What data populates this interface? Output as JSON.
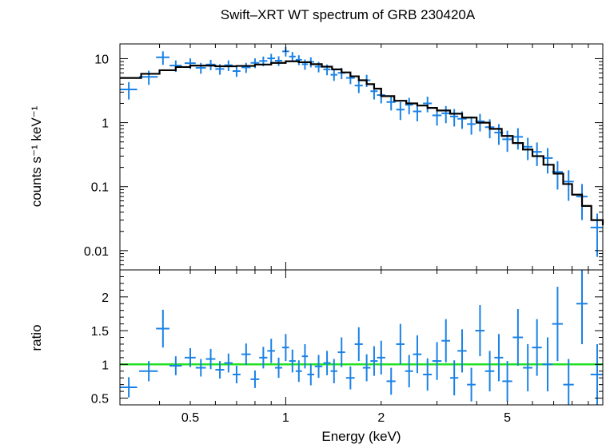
{
  "chart_data": [
    {
      "panel": "top",
      "type": "scatter",
      "title": "Swift–XRT WT spectrum of GRB 230420A",
      "xlabel": "",
      "ylabel": "counts s⁻¹ keV⁻¹",
      "xscale": "log",
      "yscale": "log",
      "xlim": [
        0.3,
        10
      ],
      "ylim": [
        0.005,
        17
      ],
      "yticks": [
        0.01,
        0.1,
        1,
        10
      ],
      "yticklabels": [
        "0.01",
        "0.1",
        "1",
        "10"
      ],
      "data_color": "#1a82e6",
      "model_color": "#000000",
      "series": [
        {
          "kind": "data",
          "x": [
            0.32,
            0.37,
            0.41,
            0.45,
            0.5,
            0.54,
            0.58,
            0.62,
            0.66,
            0.7,
            0.75,
            0.8,
            0.85,
            0.9,
            0.95,
            1.0,
            1.05,
            1.1,
            1.15,
            1.2,
            1.27,
            1.35,
            1.42,
            1.5,
            1.6,
            1.7,
            1.8,
            1.9,
            2.0,
            2.15,
            2.3,
            2.45,
            2.6,
            2.8,
            3.0,
            3.2,
            3.4,
            3.6,
            3.85,
            4.1,
            4.4,
            4.7,
            5.0,
            5.4,
            5.8,
            6.2,
            6.7,
            7.2,
            7.8,
            8.6,
            9.6
          ],
          "y": [
            3.3,
            5.2,
            10.5,
            7.8,
            8.5,
            7.2,
            8.1,
            6.9,
            7.9,
            6.4,
            7.3,
            8.6,
            9.2,
            10.1,
            9.3,
            13.0,
            10.8,
            9.6,
            8.2,
            8.9,
            7.5,
            6.8,
            5.6,
            6.0,
            5.0,
            3.8,
            4.6,
            3.1,
            2.7,
            2.1,
            1.6,
            1.9,
            1.5,
            2.0,
            1.3,
            1.4,
            1.25,
            1.15,
            0.95,
            1.05,
            0.85,
            0.7,
            0.55,
            0.6,
            0.42,
            0.35,
            0.28,
            0.17,
            0.12,
            0.07,
            0.023
          ],
          "xerr": [
            0.02,
            0.025,
            0.02,
            0.02,
            0.02,
            0.02,
            0.02,
            0.02,
            0.02,
            0.02,
            0.025,
            0.025,
            0.025,
            0.025,
            0.025,
            0.025,
            0.025,
            0.025,
            0.025,
            0.03,
            0.035,
            0.035,
            0.035,
            0.04,
            0.05,
            0.05,
            0.05,
            0.05,
            0.06,
            0.07,
            0.07,
            0.07,
            0.08,
            0.09,
            0.1,
            0.1,
            0.1,
            0.12,
            0.12,
            0.14,
            0.15,
            0.15,
            0.18,
            0.2,
            0.2,
            0.22,
            0.25,
            0.28,
            0.3,
            0.35,
            0.45
          ],
          "yerr": [
            1.0,
            1.3,
            2.5,
            1.6,
            1.6,
            1.4,
            1.5,
            1.3,
            1.5,
            1.2,
            1.3,
            1.5,
            1.6,
            1.8,
            1.6,
            2.2,
            1.9,
            1.7,
            1.5,
            1.6,
            1.4,
            1.3,
            1.1,
            1.2,
            1.0,
            0.9,
            1.0,
            0.8,
            0.7,
            0.55,
            0.5,
            0.55,
            0.45,
            0.55,
            0.4,
            0.42,
            0.38,
            0.35,
            0.3,
            0.32,
            0.28,
            0.25,
            0.2,
            0.22,
            0.16,
            0.14,
            0.12,
            0.08,
            0.06,
            0.04,
            0.015
          ]
        },
        {
          "kind": "model",
          "x": [
            0.3,
            0.35,
            0.4,
            0.45,
            0.5,
            0.6,
            0.7,
            0.8,
            0.9,
            1.0,
            1.1,
            1.2,
            1.3,
            1.4,
            1.5,
            1.6,
            1.7,
            1.8,
            1.9,
            2.0,
            2.2,
            2.4,
            2.6,
            2.8,
            3.0,
            3.3,
            3.6,
            4.0,
            4.4,
            4.8,
            5.2,
            5.6,
            6.0,
            6.5,
            7.0,
            7.5,
            8.0,
            8.6,
            9.2,
            10.0
          ],
          "y": [
            5.0,
            5.8,
            6.6,
            7.4,
            7.8,
            7.6,
            7.7,
            8.1,
            8.6,
            9.1,
            8.8,
            8.2,
            7.5,
            6.8,
            6.1,
            5.3,
            4.6,
            4.0,
            3.4,
            2.6,
            2.2,
            2.0,
            1.85,
            1.7,
            1.55,
            1.38,
            1.2,
            1.0,
            0.8,
            0.62,
            0.48,
            0.38,
            0.3,
            0.22,
            0.16,
            0.11,
            0.075,
            0.05,
            0.03,
            0.025
          ]
        }
      ]
    },
    {
      "panel": "bottom",
      "type": "scatter",
      "title": "",
      "xlabel": "Energy (keV)",
      "ylabel": "ratio",
      "xscale": "log",
      "xlim": [
        0.3,
        10
      ],
      "ylim": [
        0.4,
        2.4
      ],
      "xticks": [
        0.5,
        1,
        2,
        5
      ],
      "xticklabels": [
        "0.5",
        "1",
        "2",
        "5"
      ],
      "yticks": [
        0.5,
        1,
        1.5,
        2
      ],
      "yticklabels": [
        "0.5",
        "1",
        "1.5",
        "2"
      ],
      "reference_line": 1,
      "reference_color": "#22e022",
      "data_color": "#1a82e6",
      "series": [
        {
          "kind": "data",
          "x": [
            0.32,
            0.37,
            0.41,
            0.45,
            0.5,
            0.54,
            0.58,
            0.62,
            0.66,
            0.7,
            0.75,
            0.8,
            0.85,
            0.9,
            0.95,
            1.0,
            1.05,
            1.1,
            1.15,
            1.2,
            1.27,
            1.35,
            1.42,
            1.5,
            1.6,
            1.7,
            1.8,
            1.9,
            2.0,
            2.15,
            2.3,
            2.45,
            2.6,
            2.8,
            3.0,
            3.2,
            3.4,
            3.6,
            3.85,
            4.1,
            4.4,
            4.7,
            5.0,
            5.4,
            5.8,
            6.2,
            6.7,
            7.2,
            7.8,
            8.6,
            9.6
          ],
          "y": [
            0.66,
            0.9,
            1.53,
            0.98,
            1.1,
            0.95,
            1.08,
            0.92,
            1.02,
            0.85,
            1.15,
            0.78,
            1.1,
            1.2,
            0.95,
            1.25,
            1.05,
            0.9,
            1.12,
            0.85,
            0.97,
            1.02,
            0.9,
            1.18,
            0.8,
            1.3,
            0.95,
            1.05,
            1.1,
            0.75,
            1.3,
            0.9,
            1.15,
            0.85,
            1.05,
            1.35,
            0.8,
            1.2,
            0.7,
            1.5,
            0.9,
            1.1,
            0.75,
            1.4,
            0.95,
            1.25,
            1.0,
            1.6,
            0.7,
            1.9,
            0.85
          ],
          "xerr": [
            0.02,
            0.025,
            0.02,
            0.02,
            0.02,
            0.02,
            0.02,
            0.02,
            0.02,
            0.02,
            0.025,
            0.025,
            0.025,
            0.025,
            0.025,
            0.025,
            0.025,
            0.025,
            0.025,
            0.03,
            0.035,
            0.035,
            0.035,
            0.04,
            0.05,
            0.05,
            0.05,
            0.05,
            0.06,
            0.07,
            0.07,
            0.07,
            0.08,
            0.09,
            0.1,
            0.1,
            0.1,
            0.12,
            0.12,
            0.14,
            0.15,
            0.15,
            0.18,
            0.2,
            0.2,
            0.22,
            0.25,
            0.28,
            0.3,
            0.35,
            0.45
          ],
          "yerr": [
            0.15,
            0.15,
            0.28,
            0.14,
            0.14,
            0.13,
            0.15,
            0.13,
            0.14,
            0.13,
            0.16,
            0.13,
            0.16,
            0.18,
            0.15,
            0.2,
            0.17,
            0.16,
            0.18,
            0.16,
            0.17,
            0.18,
            0.18,
            0.22,
            0.17,
            0.25,
            0.2,
            0.22,
            0.25,
            0.2,
            0.3,
            0.24,
            0.28,
            0.24,
            0.28,
            0.32,
            0.26,
            0.32,
            0.25,
            0.38,
            0.3,
            0.35,
            0.3,
            0.42,
            0.35,
            0.42,
            0.4,
            0.55,
            0.38,
            0.6,
            0.45
          ]
        }
      ]
    }
  ]
}
